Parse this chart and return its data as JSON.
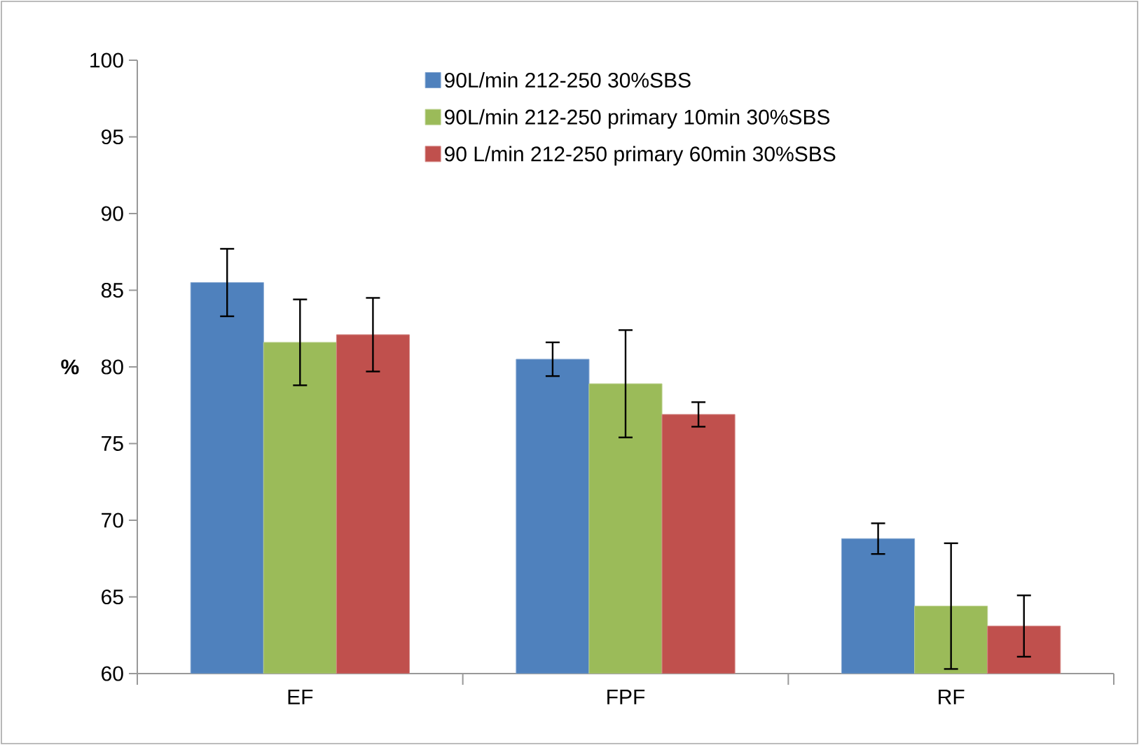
{
  "chart_data": {
    "type": "bar",
    "ylabel": "%",
    "categories": [
      "EF",
      "FPF",
      "RF"
    ],
    "series": [
      {
        "name": "90L/min 212-250 30%SBS",
        "color": "#4f81bd",
        "values": [
          85.5,
          80.5,
          68.8
        ],
        "errors": [
          2.2,
          1.1,
          1.0
        ]
      },
      {
        "name": "90L/min 212-250 primary 10min 30%SBS",
        "color": "#9bbb59",
        "values": [
          81.6,
          78.9,
          64.4
        ],
        "errors": [
          2.8,
          3.5,
          4.1
        ]
      },
      {
        "name": "90 L/min 212-250 primary 60min 30%SBS",
        "color": "#c0504d",
        "values": [
          82.1,
          76.9,
          63.1
        ],
        "errors": [
          2.4,
          0.8,
          2.0
        ]
      }
    ],
    "ylim": [
      60,
      100
    ],
    "yticks": [
      60,
      65,
      70,
      75,
      80,
      85,
      90,
      95,
      100
    ],
    "legend": "top right"
  }
}
